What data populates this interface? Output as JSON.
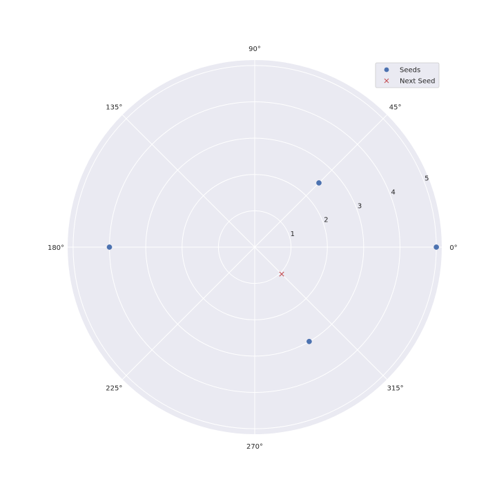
{
  "chart_data": {
    "type": "scatter",
    "projection": "polar",
    "angle_unit": "degrees",
    "theta_ticks": [
      0,
      45,
      90,
      135,
      180,
      225,
      270,
      315
    ],
    "theta_tick_labels": [
      "0°",
      "45°",
      "90°",
      "135°",
      "180°",
      "225°",
      "270°",
      "315°"
    ],
    "r_ticks": [
      1,
      2,
      3,
      4,
      5
    ],
    "r_tick_labels": [
      "1",
      "2",
      "3",
      "4",
      "5"
    ],
    "rlim": [
      0,
      5.15
    ],
    "grid": true,
    "legend_position": "top-right",
    "background_color": "#EAEAF2",
    "grid_color": "#FFFFFF",
    "series": [
      {
        "name": "Seeds",
        "marker": "circle",
        "color": "#4C72B0",
        "points": [
          {
            "theta": 0,
            "r": 5.0
          },
          {
            "theta": 45,
            "r": 2.5
          },
          {
            "theta": 180,
            "r": 4.0
          },
          {
            "theta": 300,
            "r": 3.0
          }
        ]
      },
      {
        "name": "Next Seed",
        "marker": "x",
        "color": "#C44E52",
        "points": [
          {
            "theta": 315,
            "r": 1.05
          }
        ]
      }
    ]
  }
}
